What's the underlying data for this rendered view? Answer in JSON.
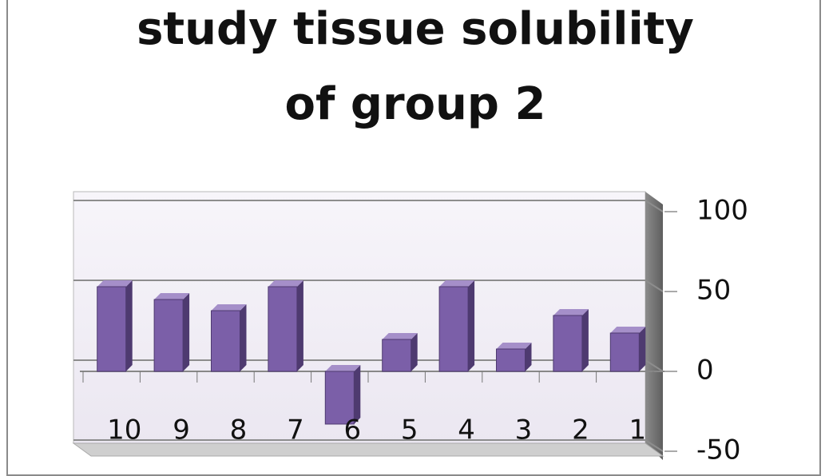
{
  "chart_data": {
    "type": "bar",
    "title": "study tissue solubility of group 2",
    "categories": [
      "10",
      "9",
      "8",
      "7",
      "6",
      "5",
      "4",
      "3",
      "2",
      "1"
    ],
    "values": [
      53,
      45,
      38,
      53,
      -33,
      20,
      53,
      14,
      35,
      24
    ],
    "color": "#7b5fa8",
    "ylim": [
      -50,
      100
    ],
    "yticks": [
      -50,
      0,
      50,
      100
    ],
    "grid": true
  }
}
